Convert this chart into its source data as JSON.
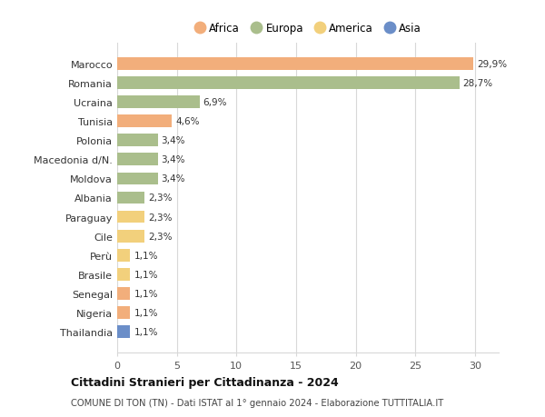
{
  "countries": [
    "Marocco",
    "Romania",
    "Ucraina",
    "Tunisia",
    "Polonia",
    "Macedonia d/N.",
    "Moldova",
    "Albania",
    "Paraguay",
    "Cile",
    "Perù",
    "Brasile",
    "Senegal",
    "Nigeria",
    "Thailandia"
  ],
  "values": [
    29.9,
    28.7,
    6.9,
    4.6,
    3.4,
    3.4,
    3.4,
    2.3,
    2.3,
    2.3,
    1.1,
    1.1,
    1.1,
    1.1,
    1.1
  ],
  "labels": [
    "29,9%",
    "28,7%",
    "6,9%",
    "4,6%",
    "3,4%",
    "3,4%",
    "3,4%",
    "2,3%",
    "2,3%",
    "2,3%",
    "1,1%",
    "1,1%",
    "1,1%",
    "1,1%",
    "1,1%"
  ],
  "continents": [
    "Africa",
    "Europa",
    "Europa",
    "Africa",
    "Europa",
    "Europa",
    "Europa",
    "Europa",
    "America",
    "America",
    "America",
    "America",
    "Africa",
    "Africa",
    "Asia"
  ],
  "colors": {
    "Africa": "#F2AE7B",
    "Europa": "#AABE8C",
    "America": "#F2D07C",
    "Asia": "#6B8EC8"
  },
  "legend_order": [
    "Africa",
    "Europa",
    "America",
    "Asia"
  ],
  "title": "Cittadini Stranieri per Cittadinanza - 2024",
  "subtitle": "COMUNE DI TON (TN) - Dati ISTAT al 1° gennaio 2024 - Elaborazione TUTTITALIA.IT",
  "xlim": [
    0,
    32
  ],
  "xticks": [
    0,
    5,
    10,
    15,
    20,
    25,
    30
  ],
  "background_color": "#ffffff",
  "grid_color": "#d8d8d8"
}
